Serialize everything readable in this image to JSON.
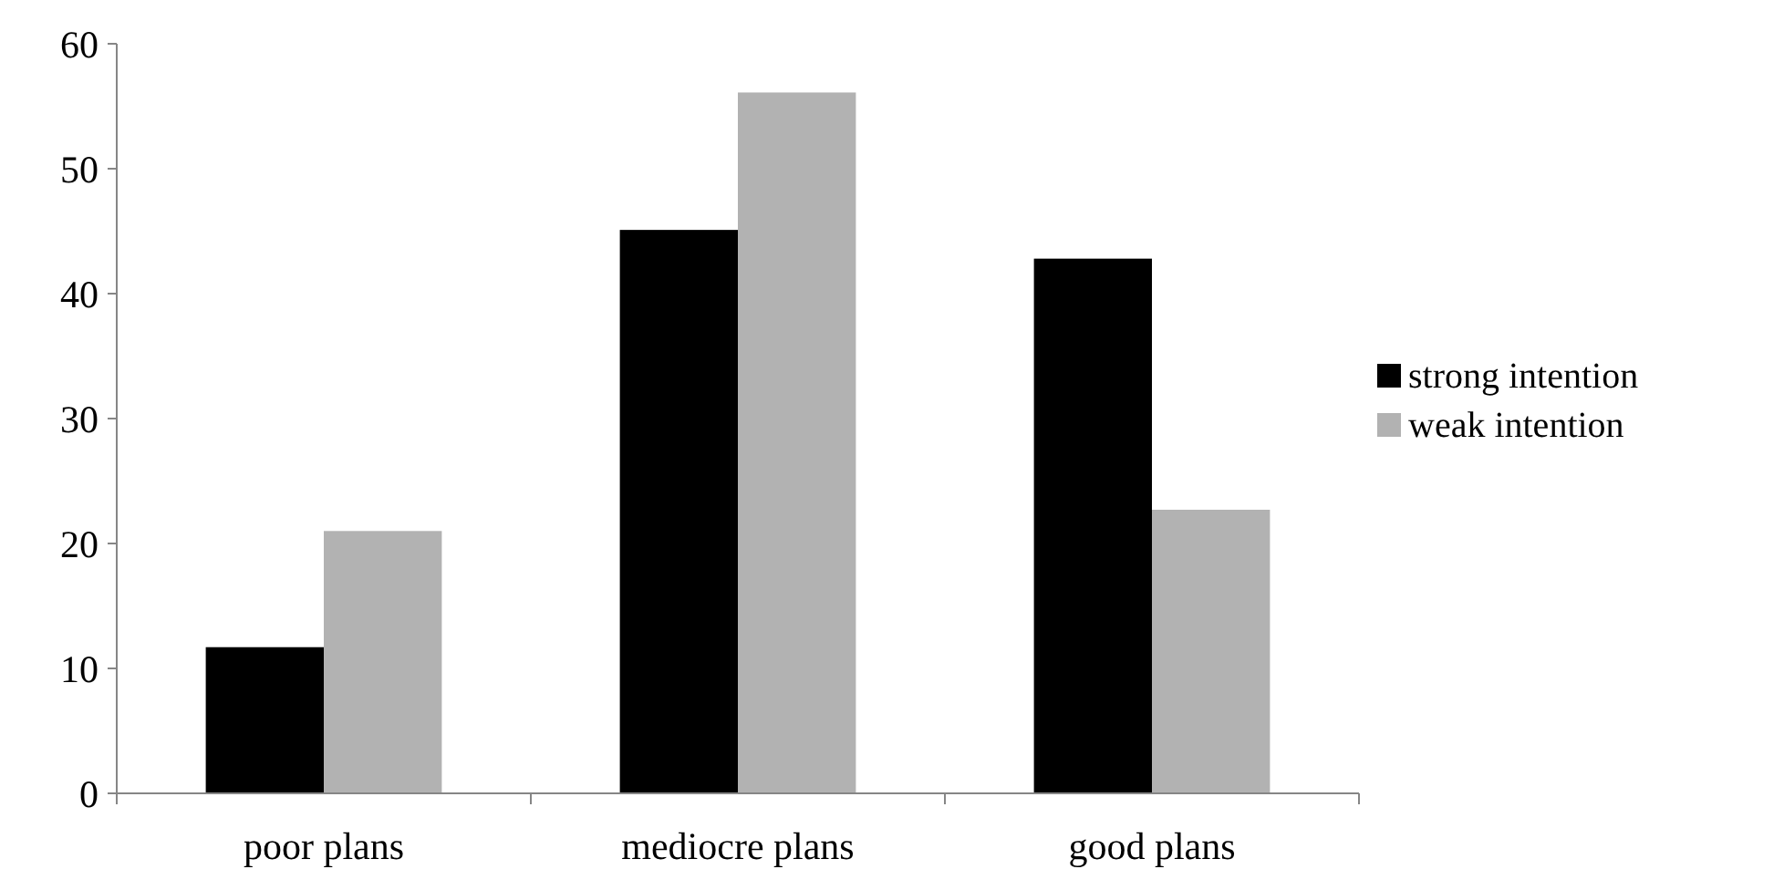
{
  "chart_data": {
    "type": "bar",
    "categories": [
      "poor plans",
      "mediocre plans",
      "good plans"
    ],
    "series": [
      {
        "name": "strong intention",
        "color": "#000000",
        "values": [
          11.7,
          45.1,
          42.8
        ]
      },
      {
        "name": "weak intention",
        "color": "#b2b2b2",
        "values": [
          21.0,
          56.1,
          22.7
        ]
      }
    ],
    "ylim": [
      0,
      60
    ],
    "yticks": [
      0,
      10,
      20,
      30,
      40,
      50,
      60
    ],
    "grid": false,
    "legend": "right"
  }
}
